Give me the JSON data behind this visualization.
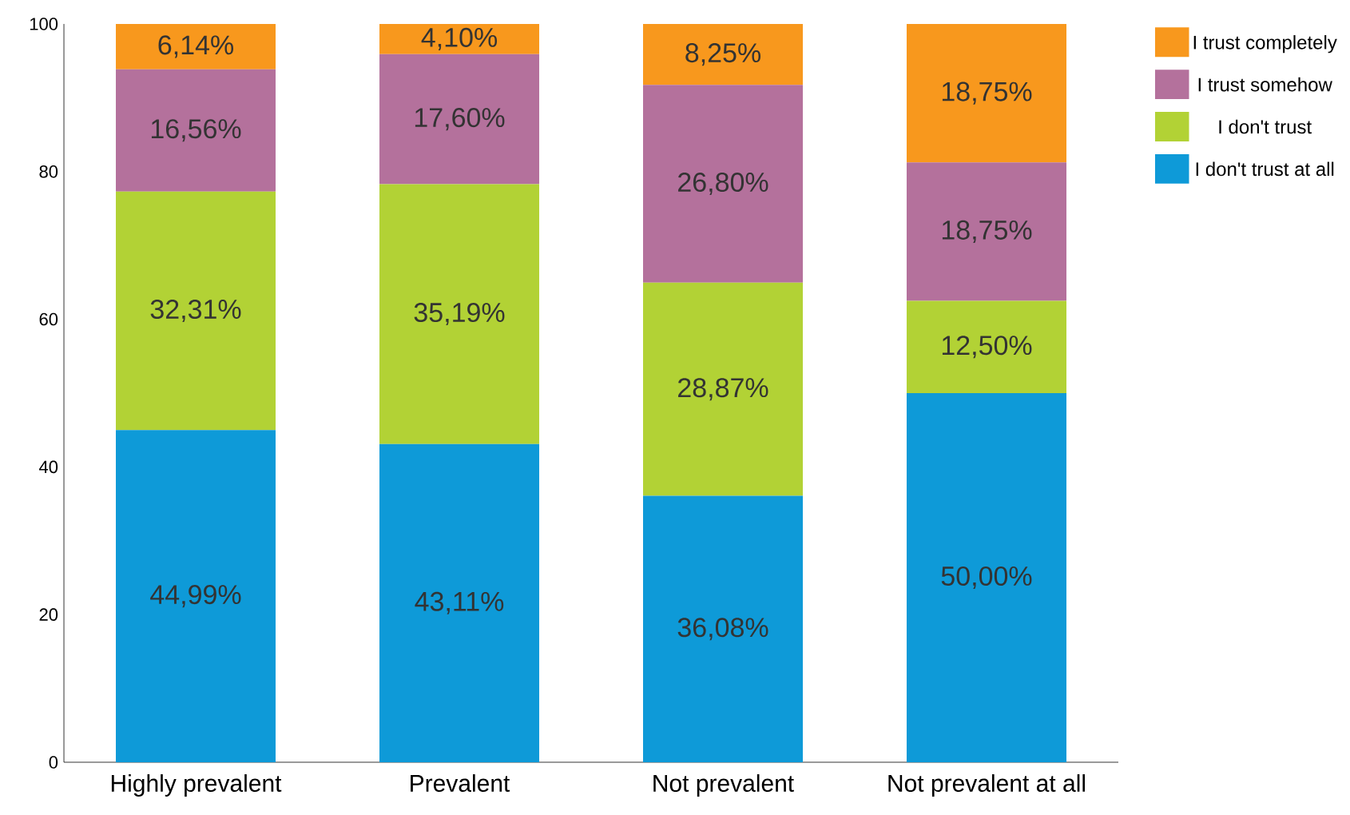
{
  "chart_data": {
    "type": "bar",
    "stacked": true,
    "categories": [
      "Highly prevalent",
      "Prevalent",
      "Not prevalent",
      "Not prevalent at all"
    ],
    "ylim": [
      0,
      100
    ],
    "yticks": [
      0,
      20,
      40,
      60,
      80,
      100
    ],
    "legend": "top right",
    "series": [
      {
        "name": "I don't trust at all",
        "color": "#0e9ad8",
        "values": [
          44.99,
          43.11,
          36.08,
          50.0
        ],
        "value_labels": [
          "44,99%",
          "43,11%",
          "36,08%",
          "50,00%"
        ]
      },
      {
        "name": "I don't trust",
        "color": "#b2d235",
        "values": [
          32.31,
          35.19,
          28.87,
          12.5
        ],
        "value_labels": [
          "32,31%",
          "35,19%",
          "28,87%",
          "12,50%"
        ]
      },
      {
        "name": "I trust somehow",
        "color": "#b4719c",
        "values": [
          16.56,
          17.6,
          26.8,
          18.75
        ],
        "value_labels": [
          "16,56%",
          "17,60%",
          "26,80%",
          "18,75%"
        ]
      },
      {
        "name": "I trust completely",
        "color": "#f8981d",
        "values": [
          6.14,
          4.1,
          8.25,
          18.75
        ],
        "value_labels": [
          "6,14%",
          "4,10%",
          "8,25%",
          "18,75%"
        ]
      }
    ]
  }
}
